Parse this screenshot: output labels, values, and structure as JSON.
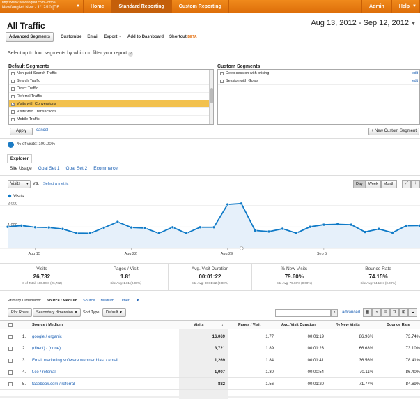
{
  "topbar": {
    "account_line1": "http://www.newfangled.com - http://...",
    "account_line2": "Newfangled New - 1/12/10 [DE...",
    "nav": [
      "Home",
      "Standard Reporting",
      "Custom Reporting"
    ],
    "active_nav": "Standard Reporting",
    "admin": "Admin",
    "help": "Help"
  },
  "page": {
    "title": "All Traffic",
    "date_start": "Aug 13, 2012",
    "date_sep": " - ",
    "date_end": "Sep 12, 2012"
  },
  "toolbar": {
    "advanced_segments": "Advanced Segments",
    "customize": "Customize",
    "email": "Email",
    "export": "Export",
    "add_to_dashboard": "Add to Dashboard",
    "shortcut": "Shortcut",
    "beta": "BETA"
  },
  "segments": {
    "instruction": "Select up to four segments by which to filter your report",
    "default_header": "Default Segments",
    "custom_header": "Custom Segments",
    "default_items": [
      {
        "label": "Non-paid Search Traffic",
        "checked": false
      },
      {
        "label": "Search Traffic",
        "checked": false
      },
      {
        "label": "Direct Traffic",
        "checked": false
      },
      {
        "label": "Referral Traffic",
        "checked": false
      },
      {
        "label": "Visits with Conversions",
        "checked": true
      },
      {
        "label": "Visits with Transactions",
        "checked": false
      },
      {
        "label": "Mobile Traffic",
        "checked": false
      }
    ],
    "custom_items": [
      {
        "label": "Deep session with pricing",
        "edit": "edit"
      },
      {
        "label": "Session with Goals",
        "edit": "edit"
      }
    ],
    "apply": "Apply",
    "cancel": "cancel",
    "new_custom": "+ New Custom Segment"
  },
  "summary": {
    "percent_visits": "% of visits: 100.00%"
  },
  "explorer": {
    "tab": "Explorer",
    "subtabs": [
      "Site Usage",
      "Goal Set 1",
      "Goal Set 2",
      "Ecommerce"
    ],
    "metric": "Visits",
    "vs": "VS.",
    "select_metric": "Select a metric",
    "granularity": [
      "Day",
      "Week",
      "Month"
    ],
    "active_granularity": "Day"
  },
  "chart_data": {
    "type": "area",
    "series": [
      {
        "name": "Visits",
        "values": [
          1000,
          1060,
          980,
          970,
          900,
          710,
          700,
          960,
          1230,
          970,
          940,
          700,
          980,
          700,
          980,
          980,
          2040,
          2080,
          830,
          780,
          910,
          710,
          1000,
          1100,
          1120,
          1100,
          760,
          900,
          730,
          1050,
          1060
        ]
      }
    ],
    "x_tick_labels": [
      "Aug 15",
      "Aug 22",
      "Aug 29",
      "Sep 5"
    ],
    "y_tick_labels": [
      "2,000",
      "1,000"
    ],
    "ylim": [
      0,
      2400
    ],
    "color": "#0f7ac7",
    "fill": "#e6f0fa",
    "legend": "top-left"
  },
  "scorecards": [
    {
      "label": "Visits",
      "value": "26,732",
      "sub": "% of Total: 100.00% (26,732)"
    },
    {
      "label": "Pages / Visit",
      "value": "1.81",
      "sub": "Site Avg: 1.81 (0.00%)"
    },
    {
      "label": "Avg. Visit Duration",
      "value": "00:01:22",
      "sub": "Site Avg: 00:01:22 (0.00%)"
    },
    {
      "label": "% New Visits",
      "value": "79.60%",
      "sub": "Site Avg: 79.60% (0.00%)"
    },
    {
      "label": "Bounce Rate",
      "value": "74.15%",
      "sub": "Site Avg: 74.15% (0.00%)"
    }
  ],
  "dimension": {
    "label": "Primary Dimension:",
    "current": "Source / Medium",
    "options": [
      "Source",
      "Medium",
      "Other"
    ]
  },
  "table_toolbar": {
    "plot_rows": "Plot Rows",
    "secondary": "Secondary dimension",
    "sort_type": "Sort Type:",
    "sort_value": "Default",
    "advanced": "advanced"
  },
  "table": {
    "headers": [
      "Source / Medium",
      "Visits",
      "Pages / Visit",
      "Avg. Visit Duration",
      "% New Visits",
      "Bounce Rate"
    ],
    "rows": [
      {
        "n": "1.",
        "src": "google / organic",
        "visits": "16,069",
        "ppv": "1.77",
        "dur": "00:01:19",
        "nv": "86.96%",
        "br": "73.74%"
      },
      {
        "n": "2.",
        "src": "(direct) / (none)",
        "visits": "3,721",
        "ppv": "1.89",
        "dur": "00:01:23",
        "nv": "66.68%",
        "br": "73.10%"
      },
      {
        "n": "3.",
        "src": "Email marketing software webinar blast / email",
        "visits": "1,269",
        "ppv": "1.84",
        "dur": "00:01:41",
        "nv": "36.56%",
        "br": "78.41%"
      },
      {
        "n": "4.",
        "src": "t.co / referral",
        "visits": "1,007",
        "ppv": "1.30",
        "dur": "00:00:54",
        "nv": "70.11%",
        "br": "86.40%"
      },
      {
        "n": "5.",
        "src": "facebook.com / referral",
        "visits": "882",
        "ppv": "1.56",
        "dur": "00:01:20",
        "nv": "71.77%",
        "br": "84.69%"
      }
    ]
  }
}
